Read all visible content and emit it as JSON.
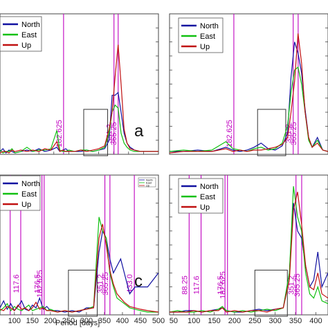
{
  "chart_data": [
    {
      "type": "line",
      "panel_label": "a",
      "xlabel": "",
      "xlim": [
        -30,
        500
      ],
      "ylim": [
        0,
        1
      ],
      "x_ticks": [
        100,
        150,
        200,
        250,
        300,
        350,
        400,
        450,
        500
      ],
      "x_tick_labels": [
        "",
        "",
        "",
        "",
        "",
        "",
        "",
        "",
        ""
      ],
      "legend": "top-left",
      "vlines": [
        {
          "x": 182.625,
          "label": "182.625"
        },
        {
          "x": 351.2,
          "label": "351.2"
        },
        {
          "x": 365.25,
          "label": "365.25"
        }
      ],
      "highlight_box": {
        "x": [
          250,
          330
        ],
        "y": [
          0.0,
          0.33
        ]
      },
      "series": [
        {
          "name": "North",
          "color": "#1010a0",
          "x": [
            -30,
            -20,
            -10,
            0,
            10,
            20,
            40,
            60,
            80,
            100,
            120,
            140,
            160,
            170,
            180,
            190,
            200,
            220,
            240,
            260,
            280,
            300,
            320,
            335,
            345,
            355,
            365,
            375,
            385,
            395,
            405,
            420,
            440,
            460,
            480,
            500
          ],
          "y": [
            0.02,
            0.04,
            0.01,
            0.03,
            0.02,
            0.01,
            0.02,
            0.03,
            0.02,
            0.04,
            0.02,
            0.03,
            0.05,
            0.02,
            0.03,
            0.04,
            0.02,
            0.02,
            0.02,
            0.03,
            0.02,
            0.03,
            0.04,
            0.1,
            0.42,
            0.42,
            0.44,
            0.3,
            0.15,
            0.08,
            0.05,
            0.03,
            0.02,
            0.02,
            0.02,
            0.02
          ]
        },
        {
          "name": "East",
          "color": "#10c010",
          "x": [
            -30,
            -20,
            -10,
            0,
            10,
            20,
            40,
            60,
            80,
            100,
            120,
            140,
            160,
            170,
            180,
            190,
            200,
            220,
            240,
            260,
            280,
            300,
            320,
            335,
            345,
            355,
            365,
            375,
            385,
            395,
            405,
            420,
            440,
            460,
            480,
            500
          ],
          "y": [
            0.03,
            0.01,
            0.02,
            0.02,
            0.04,
            0.01,
            0.02,
            0.05,
            0.02,
            0.03,
            0.03,
            0.04,
            0.17,
            0.03,
            0.02,
            0.02,
            0.03,
            0.02,
            0.03,
            0.03,
            0.02,
            0.03,
            0.05,
            0.15,
            0.3,
            0.35,
            0.33,
            0.15,
            0.08,
            0.05,
            0.03,
            0.02,
            0.02,
            0.02,
            0.02,
            0.02
          ]
        },
        {
          "name": "Up",
          "color": "#c01010",
          "x": [
            -30,
            -20,
            -10,
            0,
            10,
            20,
            40,
            60,
            80,
            100,
            120,
            140,
            160,
            170,
            180,
            190,
            200,
            220,
            240,
            260,
            280,
            300,
            320,
            335,
            345,
            355,
            365,
            375,
            385,
            395,
            405,
            420,
            440,
            460,
            480,
            500
          ],
          "y": [
            0.01,
            0.02,
            0.02,
            0.01,
            0.03,
            0.02,
            0.03,
            0.02,
            0.03,
            0.02,
            0.04,
            0.03,
            0.09,
            0.02,
            0.03,
            0.02,
            0.02,
            0.02,
            0.03,
            0.02,
            0.03,
            0.04,
            0.06,
            0.18,
            0.3,
            0.55,
            0.78,
            0.5,
            0.18,
            0.08,
            0.04,
            0.03,
            0.02,
            0.02,
            0.02,
            0.02
          ]
        }
      ]
    },
    {
      "type": "line",
      "panel_label": "",
      "xlabel": "",
      "xlim": [
        0,
        450
      ],
      "ylim": [
        0,
        1
      ],
      "x_ticks": [],
      "x_tick_labels": [],
      "legend": "top-left",
      "vlines": [
        {
          "x": 182.625,
          "label": "182.625"
        },
        {
          "x": 351.2,
          "label": "351.2"
        },
        {
          "x": 365.25,
          "label": "365.25"
        }
      ],
      "highlight_box": {
        "x": [
          250,
          330
        ],
        "y": [
          0.0,
          0.33
        ]
      },
      "series": [
        {
          "name": "North",
          "color": "#1010a0",
          "x": [
            0,
            40,
            80,
            120,
            160,
            180,
            200,
            220,
            240,
            260,
            280,
            300,
            320,
            335,
            345,
            355,
            365,
            375,
            385,
            395,
            405,
            420,
            435,
            450
          ],
          "y": [
            0.02,
            0.02,
            0.03,
            0.02,
            0.05,
            0.03,
            0.02,
            0.03,
            0.05,
            0.08,
            0.04,
            0.03,
            0.06,
            0.15,
            0.55,
            0.8,
            0.72,
            0.58,
            0.32,
            0.12,
            0.05,
            0.12,
            0.03,
            0.02
          ]
        },
        {
          "name": "East",
          "color": "#10c010",
          "x": [
            0,
            40,
            80,
            120,
            160,
            180,
            200,
            220,
            240,
            260,
            280,
            300,
            320,
            335,
            345,
            355,
            365,
            375,
            385,
            395,
            405,
            420,
            435,
            450
          ],
          "y": [
            0.02,
            0.03,
            0.02,
            0.03,
            0.09,
            0.04,
            0.03,
            0.02,
            0.04,
            0.05,
            0.03,
            0.04,
            0.08,
            0.2,
            0.44,
            0.6,
            0.62,
            0.5,
            0.3,
            0.1,
            0.05,
            0.1,
            0.03,
            0.02
          ]
        },
        {
          "name": "Up",
          "color": "#c01010",
          "x": [
            0,
            40,
            80,
            120,
            160,
            180,
            200,
            220,
            240,
            260,
            280,
            300,
            320,
            335,
            345,
            355,
            365,
            375,
            385,
            395,
            405,
            420,
            435,
            450
          ],
          "y": [
            0.01,
            0.02,
            0.02,
            0.02,
            0.04,
            0.02,
            0.03,
            0.02,
            0.03,
            0.03,
            0.04,
            0.05,
            0.07,
            0.12,
            0.3,
            0.52,
            0.86,
            0.65,
            0.3,
            0.12,
            0.05,
            0.08,
            0.03,
            0.02
          ]
        }
      ]
    },
    {
      "type": "line",
      "panel_label": "c",
      "xlabel": "Period [days]",
      "xlim": [
        60,
        500
      ],
      "ylim": [
        0,
        1
      ],
      "x_ticks": [
        100,
        150,
        200,
        250,
        300,
        350,
        400,
        450,
        500
      ],
      "x_tick_labels": [
        "100",
        "150",
        "200",
        "250",
        "300",
        "350",
        "400",
        "450",
        "500"
      ],
      "legend": "top-left",
      "mini_legend": true,
      "vlines": [
        {
          "x": 88.25,
          "label": ""
        },
        {
          "x": 117.6,
          "label": "117.6"
        },
        {
          "x": 176.5,
          "label": "176.5"
        },
        {
          "x": 182.625,
          "label": "182.625"
        },
        {
          "x": 351.2,
          "label": "351.2"
        },
        {
          "x": 365.25,
          "label": "365.25"
        },
        {
          "x": 433.0,
          "label": "433.0"
        }
      ],
      "highlight_box": {
        "x": [
          250,
          330
        ],
        "y": [
          0.0,
          0.33
        ]
      },
      "series": [
        {
          "name": "North",
          "color": "#1010a0",
          "x": [
            60,
            70,
            80,
            90,
            100,
            110,
            120,
            130,
            140,
            150,
            160,
            170,
            180,
            190,
            200,
            220,
            240,
            260,
            280,
            300,
            320,
            335,
            345,
            355,
            365,
            375,
            385,
            395,
            405,
            420,
            435,
            450,
            470,
            500
          ],
          "y": [
            0.05,
            0.1,
            0.04,
            0.08,
            0.03,
            0.06,
            0.1,
            0.04,
            0.03,
            0.07,
            0.05,
            0.12,
            0.04,
            0.06,
            0.03,
            0.03,
            0.02,
            0.03,
            0.02,
            0.05,
            0.05,
            0.45,
            0.6,
            0.55,
            0.4,
            0.3,
            0.35,
            0.4,
            0.3,
            0.15,
            0.2,
            0.2,
            0.2,
            0.3
          ]
        },
        {
          "name": "East",
          "color": "#10c010",
          "x": [
            60,
            70,
            80,
            90,
            100,
            110,
            120,
            130,
            140,
            150,
            160,
            170,
            180,
            190,
            200,
            220,
            240,
            260,
            280,
            300,
            320,
            335,
            345,
            355,
            365,
            375,
            385,
            395,
            405,
            420,
            435,
            450,
            470,
            500
          ],
          "y": [
            0.03,
            0.05,
            0.08,
            0.03,
            0.06,
            0.04,
            0.03,
            0.05,
            0.07,
            0.03,
            0.04,
            0.05,
            0.06,
            0.03,
            0.04,
            0.02,
            0.03,
            0.02,
            0.03,
            0.04,
            0.06,
            0.7,
            0.6,
            0.55,
            0.3,
            0.2,
            0.12,
            0.1,
            0.08,
            0.05,
            0.04,
            0.03,
            0.02,
            0.02
          ]
        },
        {
          "name": "Up",
          "color": "#c01010",
          "x": [
            60,
            70,
            80,
            90,
            100,
            110,
            120,
            130,
            140,
            150,
            160,
            170,
            180,
            190,
            200,
            220,
            240,
            260,
            280,
            300,
            320,
            335,
            345,
            355,
            365,
            375,
            385,
            395,
            405,
            420,
            435,
            450,
            470,
            500
          ],
          "y": [
            0.04,
            0.03,
            0.06,
            0.05,
            0.03,
            0.07,
            0.04,
            0.05,
            0.03,
            0.05,
            0.09,
            0.04,
            0.05,
            0.03,
            0.03,
            0.02,
            0.03,
            0.02,
            0.03,
            0.04,
            0.05,
            0.55,
            0.65,
            0.5,
            0.32,
            0.22,
            0.15,
            0.12,
            0.09,
            0.06,
            0.05,
            0.04,
            0.03,
            0.02
          ]
        }
      ]
    },
    {
      "type": "line",
      "panel_label": "",
      "xlabel": "",
      "xlim": [
        40,
        430
      ],
      "ylim": [
        0,
        1
      ],
      "x_ticks": [
        50,
        100,
        150,
        200,
        250,
        300,
        350,
        400
      ],
      "x_tick_labels": [
        "50",
        "100",
        "150",
        "200",
        "250",
        "300",
        "350",
        "400"
      ],
      "legend": "top-left",
      "vlines": [
        {
          "x": 88.25,
          "label": "88.25"
        },
        {
          "x": 117.6,
          "label": "117.6"
        },
        {
          "x": 176.5,
          "label": "176.5"
        },
        {
          "x": 182.625,
          "label": "182.625"
        },
        {
          "x": 351.2,
          "label": "351.2"
        },
        {
          "x": 365.25,
          "label": "365.25"
        }
      ],
      "highlight_box": {
        "x": [
          250,
          330
        ],
        "y": [
          0.0,
          0.33
        ]
      },
      "series": [
        {
          "name": "North",
          "color": "#1010a0",
          "x": [
            40,
            60,
            80,
            100,
            120,
            140,
            160,
            170,
            180,
            200,
            220,
            240,
            260,
            280,
            300,
            320,
            335,
            345,
            355,
            365,
            375,
            385,
            395,
            405,
            415,
            430
          ],
          "y": [
            0.02,
            0.02,
            0.03,
            0.03,
            0.02,
            0.03,
            0.04,
            0.05,
            0.03,
            0.02,
            0.02,
            0.03,
            0.04,
            0.03,
            0.04,
            0.05,
            0.3,
            0.8,
            0.6,
            0.55,
            0.35,
            0.2,
            0.25,
            0.45,
            0.2,
            0.3
          ]
        },
        {
          "name": "East",
          "color": "#10c010",
          "x": [
            40,
            60,
            80,
            100,
            120,
            140,
            160,
            170,
            180,
            200,
            220,
            240,
            260,
            280,
            300,
            320,
            335,
            345,
            355,
            365,
            375,
            385,
            395,
            405,
            415,
            430
          ],
          "y": [
            0.02,
            0.03,
            0.02,
            0.02,
            0.03,
            0.02,
            0.04,
            0.06,
            0.03,
            0.02,
            0.03,
            0.02,
            0.03,
            0.04,
            0.03,
            0.05,
            0.3,
            0.92,
            0.7,
            0.6,
            0.3,
            0.15,
            0.12,
            0.2,
            0.1,
            0.08
          ]
        },
        {
          "name": "Up",
          "color": "#c01010",
          "x": [
            40,
            60,
            80,
            100,
            120,
            140,
            160,
            170,
            180,
            200,
            220,
            240,
            260,
            280,
            300,
            320,
            335,
            345,
            355,
            365,
            375,
            385,
            395,
            405,
            415,
            430
          ],
          "y": [
            0.02,
            0.02,
            0.02,
            0.03,
            0.02,
            0.03,
            0.03,
            0.05,
            0.02,
            0.03,
            0.02,
            0.03,
            0.03,
            0.02,
            0.04,
            0.05,
            0.25,
            0.75,
            0.88,
            0.65,
            0.35,
            0.2,
            0.18,
            0.3,
            0.15,
            0.12
          ]
        }
      ]
    }
  ]
}
